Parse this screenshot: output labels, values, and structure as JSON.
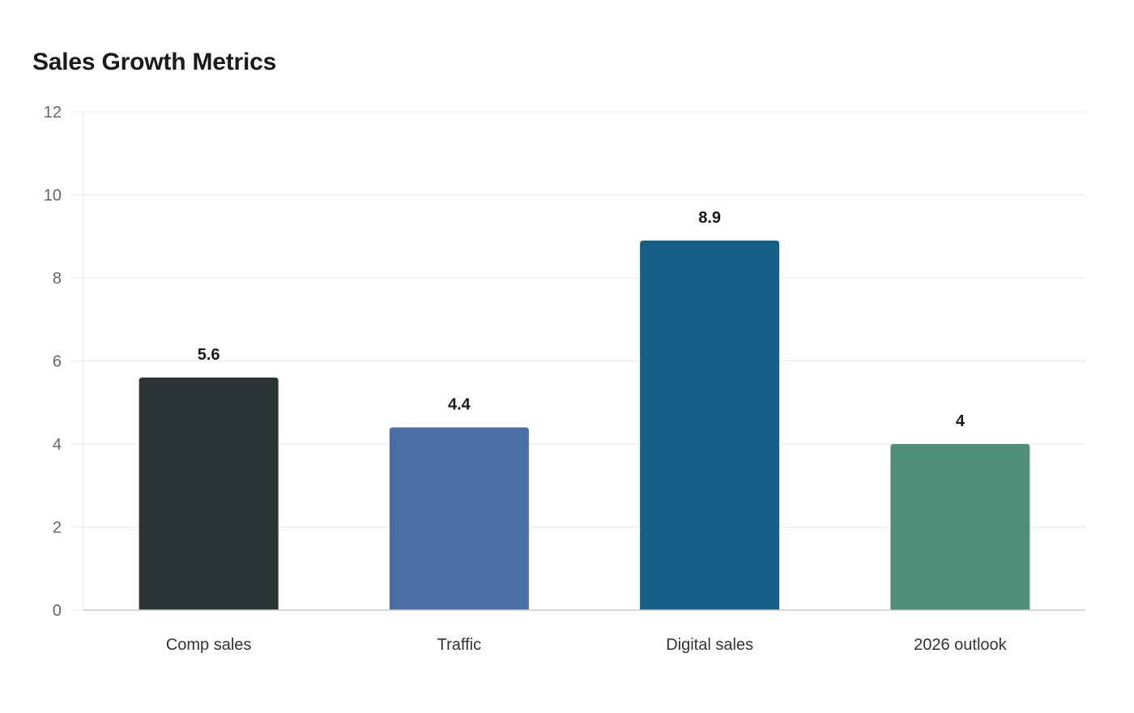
{
  "chart_data": {
    "type": "bar",
    "title": "Sales Growth Metrics",
    "xlabel": "",
    "ylabel": "",
    "categories": [
      "Comp sales",
      "Traffic",
      "Digital sales",
      "2026 outlook"
    ],
    "values": [
      5.6,
      4.4,
      8.9,
      4
    ],
    "value_labels": [
      "5.6",
      "4.4",
      "8.9",
      "4"
    ],
    "colors": [
      "#2d3436",
      "#4a6fa5",
      "#166088",
      "#4f8f7a"
    ],
    "ylim": [
      0,
      12
    ],
    "yticks": [
      0,
      2,
      4,
      6,
      8,
      10,
      12
    ],
    "ytick_labels": [
      "0",
      "2",
      "4",
      "6",
      "8",
      "10",
      "12"
    ],
    "grid": true,
    "legend": "none"
  }
}
